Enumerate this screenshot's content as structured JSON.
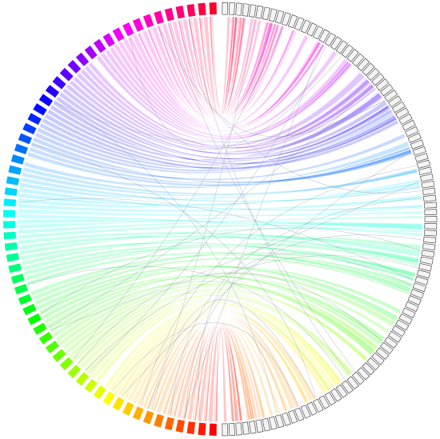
{
  "diagram": {
    "kind": "chord-diagram",
    "segments": {
      "left_colored": {
        "count": 60,
        "hue_start": 0,
        "hue_end": 350,
        "color_order": "bottom-red-through-green-blue-to-top-magenta"
      },
      "right_gray": {
        "count": 95,
        "fill": "#f4f4f4",
        "stroke": "#333333"
      }
    },
    "ribbons": {
      "count": 115,
      "opacity": 0.22
    },
    "thin_lines": {
      "count": 26,
      "stroke": "#7a8a9a",
      "opacity": 0.45
    },
    "background": "#ffffff"
  }
}
